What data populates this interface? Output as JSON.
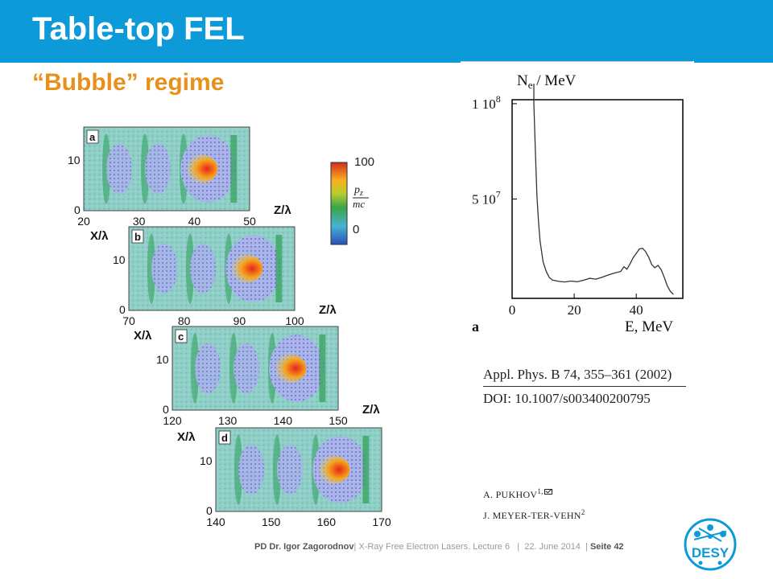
{
  "slide": {
    "title": "Table-top FEL",
    "subtitle": "“Bubble” regime"
  },
  "simulation": {
    "panels": [
      {
        "label": "a",
        "x_ticks": [
          "20",
          "30",
          "40",
          "50"
        ]
      },
      {
        "label": "b",
        "x_ticks": [
          "70",
          "80",
          "90",
          "100"
        ]
      },
      {
        "label": "c",
        "x_ticks": [
          "120",
          "130",
          "140",
          "150"
        ]
      },
      {
        "label": "d",
        "x_ticks": [
          "140",
          "150",
          "160",
          "170"
        ]
      }
    ],
    "y_ticks": [
      "0",
      "10"
    ],
    "x_axis_label": "Z/λ",
    "y_axis_label": "X/λ",
    "colorbar": {
      "max": "100",
      "min": "0",
      "label_num": "p",
      "label_sub": "z",
      "label_den": "mc"
    }
  },
  "spectrum": {
    "panel_label": "a",
    "y_axis_title": "N",
    "y_axis_title_sub": "e",
    "y_axis_unit": " / MeV",
    "x_axis_label": "E, MeV",
    "y_ticks": [
      {
        "mant": "1 10",
        "exp": "8"
      },
      {
        "mant": "5 10",
        "exp": "7"
      }
    ],
    "x_ticks": [
      "0",
      "20",
      "40"
    ],
    "colors": {
      "curve": "#333333",
      "frame": "#000000"
    }
  },
  "chart_data": {
    "type": "line",
    "title": "",
    "xlabel": "E, MeV",
    "ylabel": "Ne / MeV",
    "xlim": [
      0,
      55
    ],
    "ylim": [
      0,
      100000000.0
    ],
    "x": [
      7,
      7.5,
      8,
      8.5,
      9,
      10,
      11,
      12,
      13,
      15,
      17,
      19,
      21,
      23,
      25,
      27,
      29,
      31,
      33,
      35,
      36,
      37,
      38,
      39,
      40,
      41,
      42,
      43,
      44,
      45,
      46,
      47,
      48,
      49,
      50,
      51,
      52
    ],
    "y": [
      100000000.0,
      75000000.0,
      52000000.0,
      38000000.0,
      28000000.0,
      17000000.0,
      12000000.0,
      8800000.0,
      7500000.0,
      6800000.0,
      6500000.0,
      7000000.0,
      6600000.0,
      7400000.0,
      8400000.0,
      8000000.0,
      9000000.0,
      10200000.0,
      11200000.0,
      12000000.0,
      14500000.0,
      13200000.0,
      16000000.0,
      19200000.0,
      21500000.0,
      23800000.0,
      24200000.0,
      22500000.0,
      19500000.0,
      15500000.0,
      14000000.0,
      15200000.0,
      13000000.0,
      9000000.0,
      4500000.0,
      1500000.0,
      0
    ],
    "series": [
      {
        "values": [
          100000000.0,
          75000000.0,
          52000000.0,
          38000000.0,
          28000000.0,
          17000000.0,
          12000000.0,
          8800000.0,
          7500000.0,
          6800000.0,
          6500000.0,
          7000000.0,
          6600000.0,
          7400000.0,
          8400000.0,
          8000000.0,
          9000000.0,
          10200000.0,
          11200000.0,
          12000000.0,
          14500000.0,
          13200000.0,
          16000000.0,
          19200000.0,
          21500000.0,
          23800000.0,
          24200000.0,
          22500000.0,
          19500000.0,
          15500000.0,
          14000000.0,
          15200000.0,
          13000000.0,
          9000000.0,
          4500000.0,
          1500000.0,
          0
        ]
      }
    ]
  },
  "citation": {
    "journal": "Appl. Phys. B 74, 355–361 (2002)",
    "doi": "DOI: 10.1007/s003400200795"
  },
  "authors": {
    "first": "A. PUKHOV",
    "first_sup": "1,",
    "second": "J. MEYER-TER-VEHN",
    "second_sup": "2"
  },
  "footer": {
    "presenter": "PD Dr. Igor Zagorodnov",
    "lecture": "| X-Ray Free Electron Lasers. Lecture 6   |  22. June 2014  |",
    "page": "Seite 42"
  },
  "logo": {
    "text": "DESY",
    "color": "#0d9ad8"
  }
}
